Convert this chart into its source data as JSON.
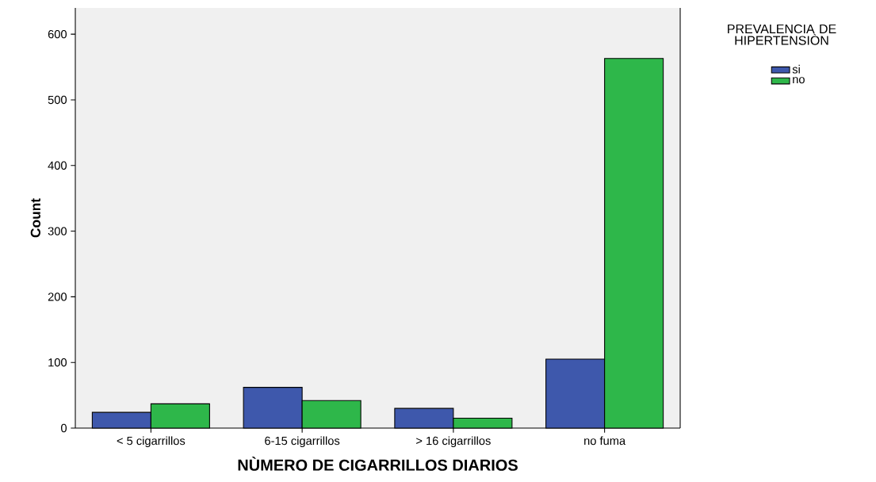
{
  "chart_data": {
    "type": "bar",
    "xlabel": "NÙMERO DE CIGARRILLOS DIARIOS",
    "ylabel": "Count",
    "legend_title": "PREVALENCIA DE HIPERTENSIÒN",
    "categories": [
      "< 5 cigarrillos",
      "6-15 cigarrillos",
      "> 16 cigarrillos",
      "no fuma"
    ],
    "series": [
      {
        "name": "si",
        "color": "#3e58ac",
        "values": [
          24,
          62,
          30,
          105
        ]
      },
      {
        "name": "no",
        "color": "#2eb74a",
        "values": [
          37,
          42,
          15,
          563
        ]
      }
    ],
    "ylim": [
      0,
      640
    ],
    "yticks": [
      0,
      100,
      200,
      300,
      400,
      500,
      600
    ],
    "legend": "top right",
    "grid": false
  }
}
